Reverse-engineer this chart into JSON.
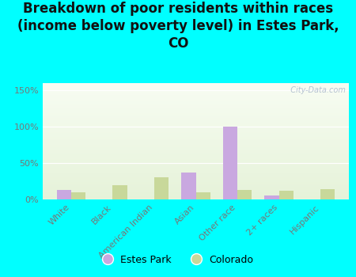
{
  "title": "Breakdown of poor residents within races\n(income below poverty level) in Estes Park,\nCO",
  "categories": [
    "White",
    "Black",
    "American Indian",
    "Asian",
    "Other race",
    "2+ races",
    "Hispanic"
  ],
  "estes_park": [
    13,
    0,
    0,
    37,
    100,
    5,
    0
  ],
  "colorado": [
    10,
    20,
    30,
    10,
    13,
    12,
    14
  ],
  "estes_park_color": "#c9a8e0",
  "colorado_color": "#c8d89a",
  "bar_width": 0.35,
  "ylim": [
    0,
    160
  ],
  "yticks": [
    0,
    50,
    100,
    150
  ],
  "ytick_labels": [
    "0%",
    "50%",
    "100%",
    "150%"
  ],
  "background_color": "#00ffff",
  "title_fontsize": 12,
  "title_color": "#111111",
  "legend_labels": [
    "Estes Park",
    "Colorado"
  ],
  "watermark": "  City-Data.com",
  "tick_color": "#777777",
  "tick_fontsize": 8,
  "xlabel_fontsize": 8,
  "legend_fontsize": 9
}
